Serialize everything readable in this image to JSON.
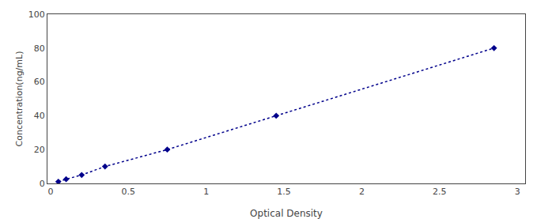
{
  "chart_data": {
    "type": "line",
    "x": [
      0.05,
      0.1,
      0.2,
      0.35,
      0.75,
      1.45,
      2.85
    ],
    "values": [
      1.0,
      2.5,
      5.0,
      10.0,
      20.0,
      40.0,
      80.0
    ],
    "color": "#00008B",
    "marker": "diamond",
    "line_style": "dotted",
    "xlabel": "Optical Density",
    "ylabel": "Concentration(ng/mL)",
    "xlim": [
      -0.02,
      3.05
    ],
    "xticks": [
      0,
      0.5,
      1,
      1.5,
      2,
      2.5,
      3
    ],
    "ylim": [
      0,
      100
    ],
    "yticks": [
      0,
      20,
      40,
      60,
      80,
      100
    ],
    "grid": false
  }
}
